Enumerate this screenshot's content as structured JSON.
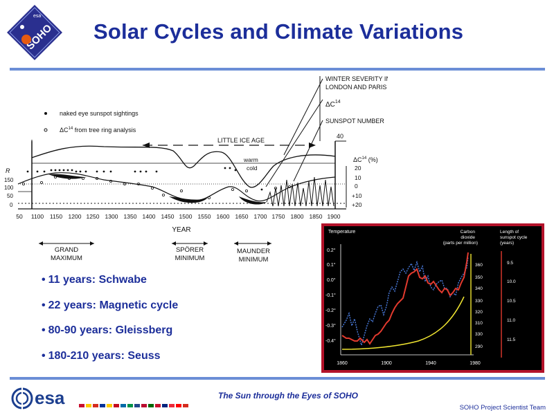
{
  "header": {
    "title": "Solar Cycles and Climate Variations",
    "logo_text": "SOHO",
    "logo_small": "esa"
  },
  "main_chart": {
    "legend": {
      "naked_eye": "naked eye sunspot sightings",
      "tree_ring_prefix": "ΔC",
      "tree_ring_sup": "14",
      "tree_ring_suffix": " from tree ring analysis"
    },
    "annotations": {
      "winter_severity_1": "WINTER SEVERITY IN",
      "winter_severity_2": "LONDON AND PARIS",
      "delta_c14": "ΔC",
      "delta_c14_sup": "14",
      "sunspot_number": "SUNSPOT NUMBER",
      "little_ice_age": "LITTLE ICE AGE",
      "warm": "warm",
      "cold": "cold",
      "forty": "40",
      "right_axis_title": "ΔC",
      "right_axis_sup": "14",
      "right_axis_unit": " (%)",
      "left_axis_r": "R",
      "x_axis_title": "YEAR",
      "grand_max_1": "GRAND",
      "grand_max_2": "MAXIMUM",
      "sporer_1": "SPÖRER",
      "sporer_2": "MINIMUM",
      "maunder_1": "MAUNDER",
      "maunder_2": "MINIMUM"
    },
    "x_ticks": [
      "50",
      "1100",
      "1150",
      "1200",
      "1250",
      "1300",
      "1350",
      "1400",
      "1450",
      "1500",
      "1550",
      "1600",
      "1650",
      "1700",
      "1750",
      "1800",
      "1850",
      "1900"
    ],
    "y_left_ticks": [
      "150",
      "100",
      "50",
      "0"
    ],
    "y_right_ticks": [
      "20",
      "10",
      "0",
      "+10",
      "+20"
    ]
  },
  "inset_chart": {
    "temperature_label": "Temperature",
    "co2_label_1": "Carbon",
    "co2_label_2": "dioxide",
    "co2_label_3": "(parts per million)",
    "cycle_label_1": "Length of",
    "cycle_label_2": "sunspot cycle",
    "cycle_label_3": "(years)",
    "temp_ticks": [
      "0.2°",
      "0.1°",
      "0.0°",
      "-0.1°",
      "-0.2°",
      "-0.3°",
      "-0.4°"
    ],
    "co2_ticks": [
      "360",
      "350",
      "340",
      "330",
      "320",
      "310",
      "330",
      "290"
    ],
    "cycle_ticks": [
      "9.5",
      "10.0",
      "10.5",
      "11.0",
      "11.5"
    ],
    "x_ticks": [
      "1860",
      "1900",
      "1940",
      "1980"
    ]
  },
  "bullets": [
    "11 years: Schwabe",
    "22 years: Magnetic cycle",
    "80-90 years: Gleissberg",
    "180-210 years: Seuss"
  ],
  "footer": {
    "title": "The Sun through the Eyes of SOHO",
    "team": "SOHO Project Scientist Team",
    "esa_text": "esa"
  }
}
